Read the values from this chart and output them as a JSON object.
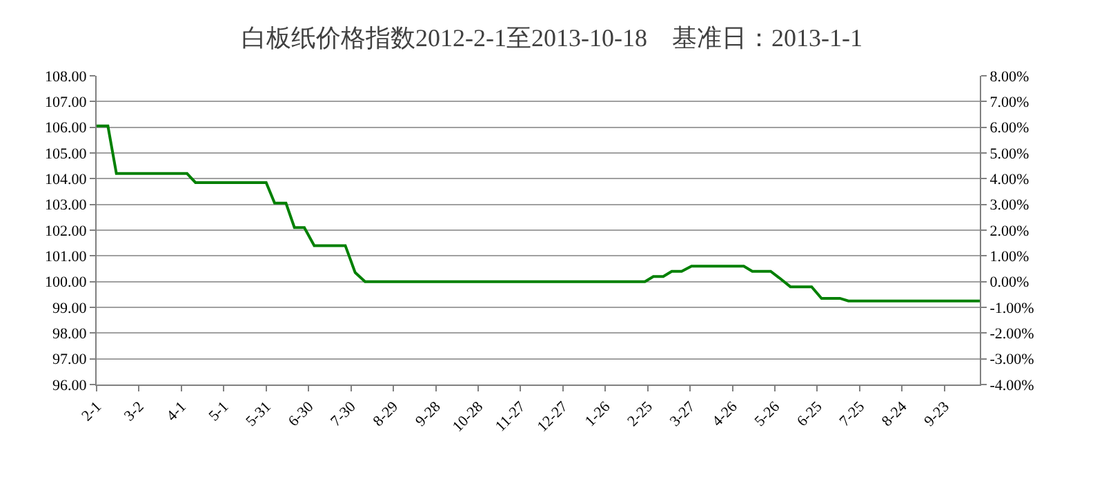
{
  "chart_data": {
    "type": "line",
    "title": "白板纸价格指数2012-2-1至2013-10-18　基准日：2013-1-1",
    "x": [
      "2012-02-01",
      "2012-02-09",
      "2012-02-15",
      "2012-04-05",
      "2012-04-11",
      "2012-05-31",
      "2012-06-06",
      "2012-06-14",
      "2012-06-20",
      "2012-06-27",
      "2012-07-04",
      "2012-07-26",
      "2012-08-02",
      "2012-08-09",
      "2013-02-23",
      "2013-03-01",
      "2013-03-08",
      "2013-03-14",
      "2013-03-21",
      "2013-03-28",
      "2013-05-04",
      "2013-05-10",
      "2013-05-23",
      "2013-05-29",
      "2013-06-06",
      "2013-06-21",
      "2013-06-28",
      "2013-07-11",
      "2013-07-17",
      "2013-10-18"
    ],
    "series": [
      {
        "color": "#008000",
        "values": [
          106.05,
          106.05,
          104.2,
          104.2,
          103.85,
          103.85,
          103.05,
          103.05,
          102.1,
          102.1,
          101.4,
          101.4,
          100.35,
          100.0,
          100.0,
          100.2,
          100.2,
          100.4,
          100.4,
          100.6,
          100.6,
          100.4,
          100.4,
          100.15,
          99.8,
          99.8,
          99.35,
          99.35,
          99.25,
          99.25
        ]
      }
    ],
    "xlim": [
      "2012-02-01",
      "2013-10-18"
    ],
    "xticks": [
      {
        "value": "2012-02-01",
        "label": "2-1"
      },
      {
        "value": "2012-03-02",
        "label": "3-2"
      },
      {
        "value": "2012-04-01",
        "label": "4-1"
      },
      {
        "value": "2012-05-01",
        "label": "5-1"
      },
      {
        "value": "2012-05-31",
        "label": "5-31"
      },
      {
        "value": "2012-06-30",
        "label": "6-30"
      },
      {
        "value": "2012-07-30",
        "label": "7-30"
      },
      {
        "value": "2012-08-29",
        "label": "8-29"
      },
      {
        "value": "2012-09-28",
        "label": "9-28"
      },
      {
        "value": "2012-10-28",
        "label": "10-28"
      },
      {
        "value": "2012-11-27",
        "label": "11-27"
      },
      {
        "value": "2012-12-27",
        "label": "12-27"
      },
      {
        "value": "2013-01-26",
        "label": "1-26"
      },
      {
        "value": "2013-02-25",
        "label": "2-25"
      },
      {
        "value": "2013-03-27",
        "label": "3-27"
      },
      {
        "value": "2013-04-26",
        "label": "4-26"
      },
      {
        "value": "2013-05-26",
        "label": "5-26"
      },
      {
        "value": "2013-06-25",
        "label": "6-25"
      },
      {
        "value": "2013-07-25",
        "label": "7-25"
      },
      {
        "value": "2013-08-24",
        "label": "8-24"
      },
      {
        "value": "2013-09-23",
        "label": "9-23"
      }
    ],
    "ylim": [
      96,
      108
    ],
    "yticks": [
      {
        "value": 96,
        "label": "96.00"
      },
      {
        "value": 97,
        "label": "97.00"
      },
      {
        "value": 98,
        "label": "98.00"
      },
      {
        "value": 99,
        "label": "99.00"
      },
      {
        "value": 100,
        "label": "100.00"
      },
      {
        "value": 101,
        "label": "101.00"
      },
      {
        "value": 102,
        "label": "102.00"
      },
      {
        "value": 103,
        "label": "103.00"
      },
      {
        "value": 104,
        "label": "104.00"
      },
      {
        "value": 105,
        "label": "105.00"
      },
      {
        "value": 106,
        "label": "106.00"
      },
      {
        "value": 107,
        "label": "107.00"
      },
      {
        "value": 108,
        "label": "108.00"
      }
    ],
    "y2lim": [
      -4,
      8
    ],
    "y2ticks": [
      {
        "value": -4,
        "label": "-4.00%"
      },
      {
        "value": -3,
        "label": "-3.00%"
      },
      {
        "value": -2,
        "label": "-2.00%"
      },
      {
        "value": -1,
        "label": "-1.00%"
      },
      {
        "value": 0,
        "label": "0.00%"
      },
      {
        "value": 1,
        "label": "1.00%"
      },
      {
        "value": 2,
        "label": "2.00%"
      },
      {
        "value": 3,
        "label": "3.00%"
      },
      {
        "value": 4,
        "label": "4.00%"
      },
      {
        "value": 5,
        "label": "5.00%"
      },
      {
        "value": 6,
        "label": "6.00%"
      },
      {
        "value": 7,
        "label": "7.00%"
      },
      {
        "value": 8,
        "label": "8.00%"
      }
    ],
    "grid": "y",
    "marker": "none",
    "line_style": "solid"
  }
}
